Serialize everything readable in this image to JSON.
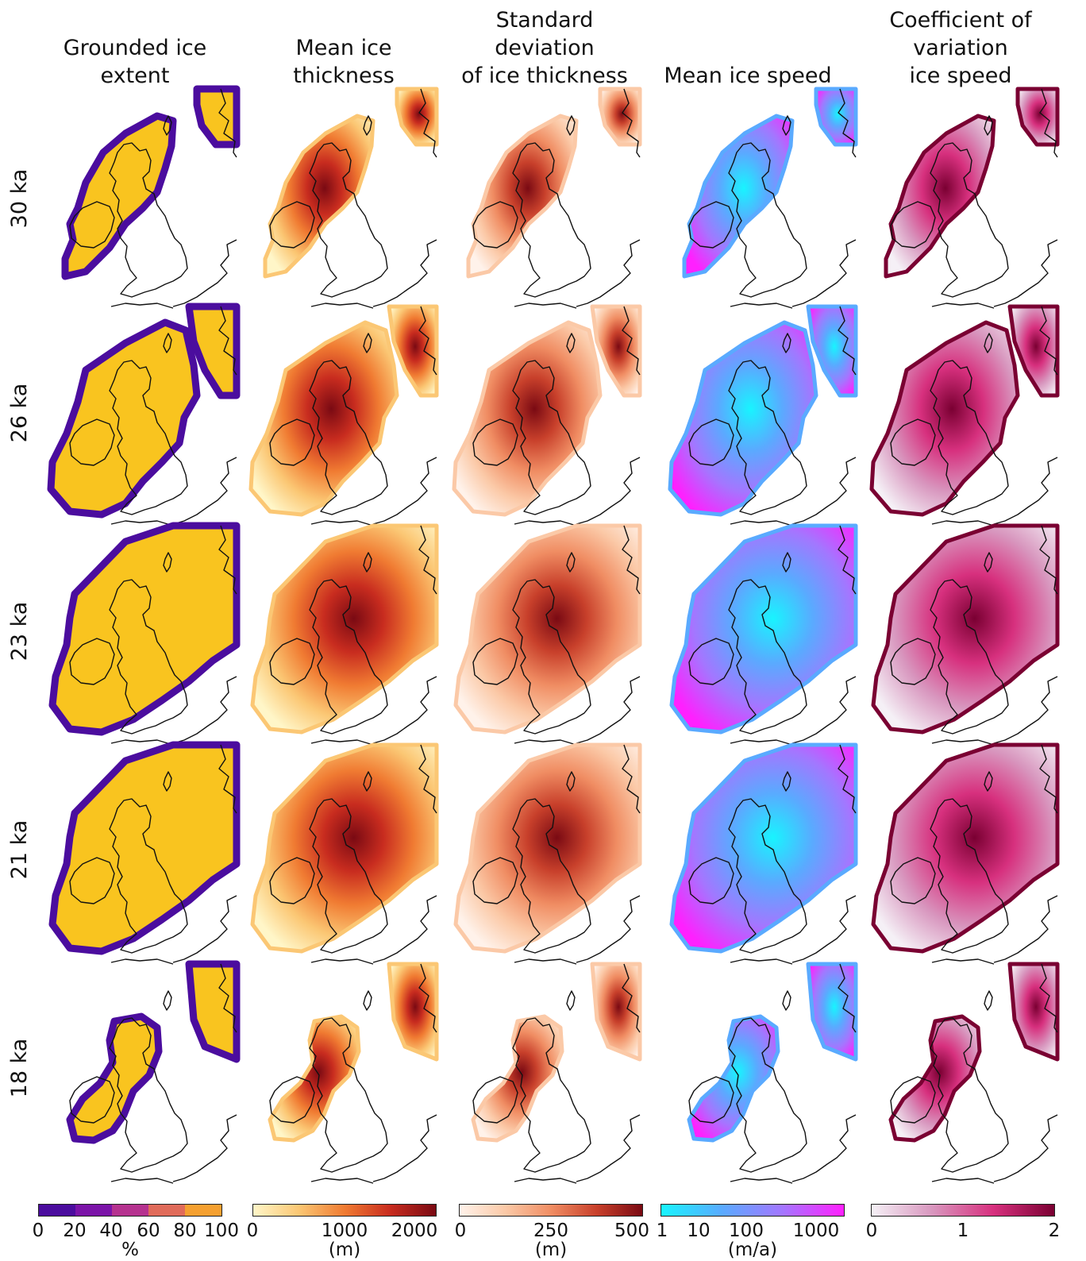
{
  "columns": [
    {
      "title_lines": [
        "Grounded ice",
        "extent"
      ],
      "scale": "extent",
      "colorbar": {
        "ticks": [
          "0",
          "20",
          "40",
          "60",
          "80",
          "100"
        ],
        "unit": "%"
      }
    },
    {
      "title_lines": [
        "Mean ice",
        "thickness"
      ],
      "scale": "thickness",
      "colorbar": {
        "ticks": [
          "0",
          "1000",
          "2000"
        ],
        "unit": "(m)"
      }
    },
    {
      "title_lines": [
        "Standard",
        "deviation",
        "of ice thickness"
      ],
      "scale": "stdev",
      "colorbar": {
        "ticks": [
          "0",
          "250",
          "500"
        ],
        "unit": "(m)"
      }
    },
    {
      "title_lines": [
        "Mean ice speed"
      ],
      "scale": "speed",
      "colorbar": {
        "ticks": [
          "1",
          "10",
          "100",
          "1000"
        ],
        "unit": "(m/a)"
      }
    },
    {
      "title_lines": [
        "Coefficient of",
        "variation",
        "ice speed"
      ],
      "scale": "cv",
      "colorbar": {
        "ticks": [
          "0",
          "1",
          "2"
        ],
        "unit": ""
      }
    }
  ],
  "rows": [
    {
      "label": "30 ka",
      "ice": "small"
    },
    {
      "label": "26 ka",
      "ice": "large"
    },
    {
      "label": "23 ka",
      "ice": "max"
    },
    {
      "label": "21 ka",
      "ice": "max"
    },
    {
      "label": "18 ka",
      "ice": "retreat"
    }
  ],
  "colors": {
    "extent": [
      "#4b0d9e",
      "#7b14a8",
      "#b5328f",
      "#e06b5a",
      "#f5a030",
      "#f9c41f"
    ],
    "thickness": [
      "#fff6c8",
      "#fbc774",
      "#f07b32",
      "#c82c1f",
      "#7a0a13"
    ],
    "stdev": [
      "#fff2ea",
      "#fbc9a7",
      "#f08d63",
      "#c8402b",
      "#7a0a13"
    ],
    "speed": [
      "#18f4ff",
      "#5aaaff",
      "#a476ff",
      "#ff20ff"
    ],
    "cv": [
      "#f5f0f6",
      "#d896be",
      "#d7307e",
      "#7a0032"
    ],
    "coast": "#111111"
  }
}
